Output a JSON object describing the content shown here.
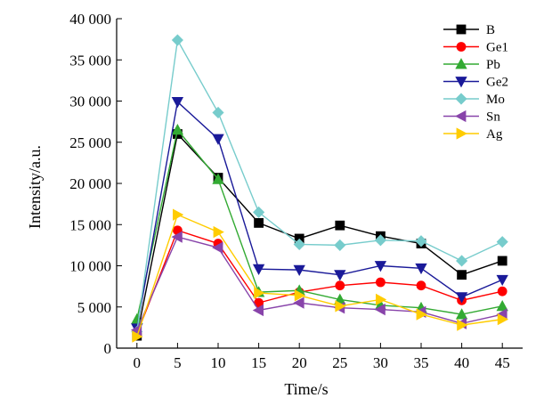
{
  "chart_data": {
    "type": "line",
    "xlabel": "Time/s",
    "ylabel": "Intensity/a.u.",
    "x": [
      0,
      5,
      10,
      15,
      20,
      25,
      30,
      35,
      40,
      45
    ],
    "xlim": [
      -2.5,
      47.5
    ],
    "ylim": [
      0,
      40000
    ],
    "x_ticks": [
      "0",
      "5",
      "10",
      "15",
      "20",
      "25",
      "30",
      "35",
      "40",
      "45"
    ],
    "y_ticks": [
      {
        "value": 0,
        "label": "0"
      },
      {
        "value": 5000,
        "label": "5 000"
      },
      {
        "value": 10000,
        "label": "10 000"
      },
      {
        "value": 15000,
        "label": "15 000"
      },
      {
        "value": 20000,
        "label": "20 000"
      },
      {
        "value": 25000,
        "label": "25 000"
      },
      {
        "value": 30000,
        "label": "30 000"
      },
      {
        "value": 35000,
        "label": "35 000"
      },
      {
        "value": 40000,
        "label": "40 000"
      }
    ],
    "grid": false,
    "legend_position": "top-right",
    "series": [
      {
        "name": "B",
        "color": "#000000",
        "marker": "square",
        "values": [
          1500,
          26000,
          20700,
          15200,
          13300,
          14900,
          13600,
          12700,
          8900,
          10600
        ]
      },
      {
        "name": "Ge1",
        "color": "#ff0000",
        "marker": "circle",
        "values": [
          1700,
          14300,
          12700,
          5500,
          6800,
          7600,
          8000,
          7600,
          5800,
          6900
        ]
      },
      {
        "name": "Pb",
        "color": "#33aa33",
        "marker": "triangle-up",
        "values": [
          3500,
          26500,
          20500,
          6800,
          7000,
          5900,
          5200,
          4900,
          4100,
          5100
        ]
      },
      {
        "name": "Ge2",
        "color": "#1a1a99",
        "marker": "triangle-down",
        "values": [
          2400,
          29900,
          25400,
          9600,
          9500,
          8900,
          10000,
          9700,
          6200,
          8300
        ]
      },
      {
        "name": "Mo",
        "color": "#77cccc",
        "marker": "diamond",
        "values": [
          2000,
          37400,
          28600,
          16500,
          12600,
          12500,
          13100,
          13000,
          10600,
          12900
        ]
      },
      {
        "name": "Sn",
        "color": "#8844aa",
        "marker": "triangle-left",
        "values": [
          2200,
          13500,
          12200,
          4600,
          5500,
          4900,
          4700,
          4400,
          3000,
          4100
        ]
      },
      {
        "name": "Ag",
        "color": "#ffcc00",
        "marker": "triangle-right",
        "values": [
          1400,
          16200,
          14100,
          6700,
          6400,
          5100,
          5900,
          4100,
          2800,
          3500
        ]
      }
    ]
  }
}
